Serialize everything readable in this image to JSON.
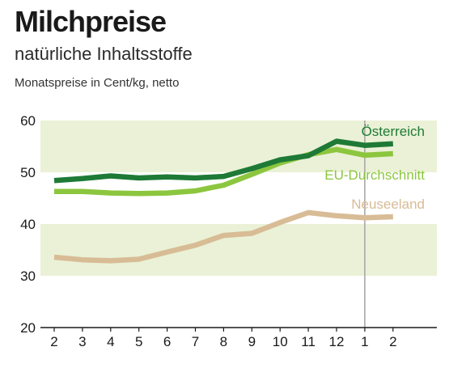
{
  "title": "Milchpreise",
  "subtitle": "natürliche Inhaltsstoffe",
  "unit_label": "Monatspreise in Cent/kg, netto",
  "colors": {
    "band": "#eaf1d6",
    "oesterreich": "#1e7a36",
    "eu": "#8cc63e",
    "neuseeland": "#d8bc96",
    "divider": "#a8a8a8",
    "axis": "#1a1a1a"
  },
  "chart_data": {
    "type": "line",
    "title": "Milchpreise",
    "subtitle": "natürliche Inhaltsstoffe",
    "ylabel": "Monatspreise in Cent/kg, netto",
    "xlabel": "",
    "categories": [
      "2",
      "3",
      "4",
      "5",
      "6",
      "7",
      "8",
      "9",
      "10",
      "11",
      "12",
      "1",
      "2"
    ],
    "ylim": [
      20,
      60
    ],
    "yticks": [
      20,
      30,
      40,
      50,
      60
    ],
    "bands": [
      [
        30,
        40
      ],
      [
        50,
        60
      ]
    ],
    "year_divider_before_index": 11,
    "grid": false,
    "series": [
      {
        "name": "Österreich",
        "color_key": "oesterreich",
        "values": [
          48.4,
          48.8,
          49.3,
          48.9,
          49.1,
          48.9,
          49.2,
          50.7,
          52.4,
          53.2,
          56.0,
          55.2,
          55.5
        ]
      },
      {
        "name": "EU-Durchschnitt",
        "color_key": "eu",
        "values": [
          46.3,
          46.3,
          46.0,
          45.9,
          46.0,
          46.4,
          47.5,
          49.6,
          51.8,
          53.4,
          54.4,
          53.3,
          53.6
        ]
      },
      {
        "name": "Neuseeland",
        "color_key": "neuseeland",
        "values": [
          33.6,
          33.1,
          32.9,
          33.2,
          34.6,
          35.9,
          37.8,
          38.2,
          40.3,
          42.2,
          41.6,
          41.2,
          41.4
        ]
      }
    ]
  }
}
